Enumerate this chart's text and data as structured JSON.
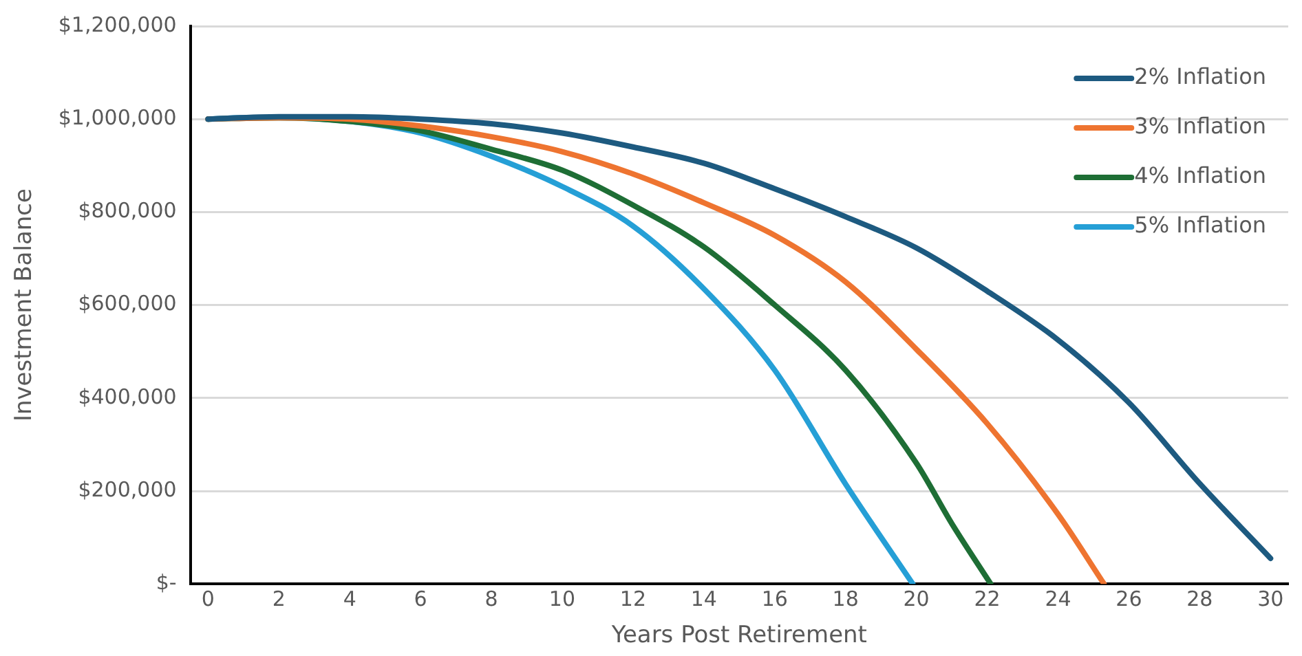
{
  "chart_data": {
    "type": "line",
    "xlabel": "Years Post Retirement",
    "ylabel": "Investment Balance",
    "xlim": [
      -0.5,
      30.5
    ],
    "xticks": [
      0,
      2,
      4,
      6,
      8,
      10,
      12,
      14,
      16,
      18,
      20,
      22,
      24,
      26,
      28,
      30
    ],
    "ylim": [
      0,
      1200000
    ],
    "yticks": [
      {
        "value": 0,
        "label": "$-"
      },
      {
        "value": 200000,
        "label": "$200,000"
      },
      {
        "value": 400000,
        "label": "$400,000"
      },
      {
        "value": 600000,
        "label": "$600,000"
      },
      {
        "value": 800000,
        "label": "$800,000"
      },
      {
        "value": 1000000,
        "label": "$1,000,000"
      },
      {
        "value": 1200000,
        "label": "$1,200,000"
      }
    ],
    "grid": "y",
    "legend": "top right",
    "marker": "none",
    "line_style": "solid",
    "series": [
      {
        "name": "2% Inflation",
        "color": "#1d5a80",
        "x": [
          0,
          2,
          4,
          6,
          8,
          10,
          12,
          14,
          16,
          18,
          20,
          22,
          24,
          26,
          28,
          30
        ],
        "values": [
          1000000,
          1005000,
          1005000,
          1000000,
          990000,
          970000,
          940000,
          905000,
          850000,
          790000,
          723000,
          630000,
          525000,
          390000,
          216000,
          55000
        ]
      },
      {
        "name": "3% Inflation",
        "color": "#ee7430",
        "x": [
          0,
          2,
          4,
          6,
          8,
          10,
          12,
          14,
          16,
          18,
          20,
          22,
          24,
          25.3
        ],
        "values": [
          1000000,
          1003000,
          1000000,
          985000,
          962000,
          930000,
          882000,
          820000,
          750000,
          650000,
          505000,
          345000,
          150000,
          0
        ]
      },
      {
        "name": "4% Inflation",
        "color": "#1e6e35",
        "x": [
          0,
          2,
          4,
          6,
          8,
          10,
          12,
          14,
          16,
          18,
          20,
          21,
          22.1
        ],
        "values": [
          1000000,
          1003000,
          995000,
          975000,
          935000,
          890000,
          815000,
          725000,
          600000,
          460000,
          260000,
          130000,
          0
        ]
      },
      {
        "name": "5% Inflation",
        "color": "#259fd6",
        "x": [
          0,
          1,
          2,
          4,
          6,
          8,
          10,
          12,
          14,
          16,
          18,
          19.9
        ],
        "values": [
          1000000,
          1003000,
          1003000,
          995000,
          970000,
          920000,
          855000,
          770000,
          635000,
          460000,
          215000,
          0
        ]
      }
    ]
  }
}
